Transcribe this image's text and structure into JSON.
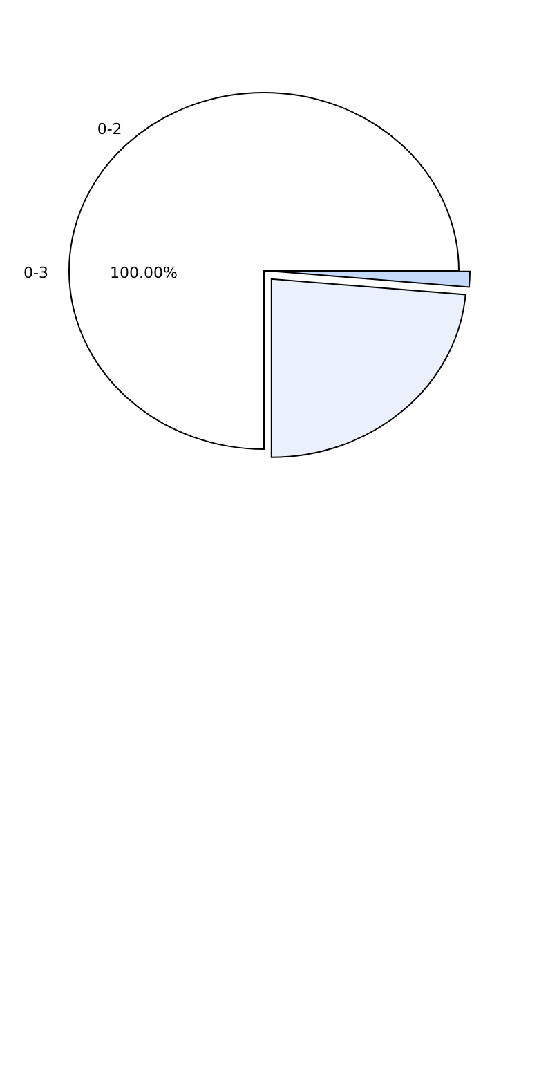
{
  "chart_data": {
    "type": "pie",
    "categories": [
      null,
      null,
      "0-2"
    ],
    "values": [
      1.4,
      23.6,
      75
    ],
    "colors": [
      "#c5d9f8",
      "#eaf1fd",
      "#ffffff"
    ],
    "annotations": [
      "0-3",
      "100.00%"
    ]
  }
}
